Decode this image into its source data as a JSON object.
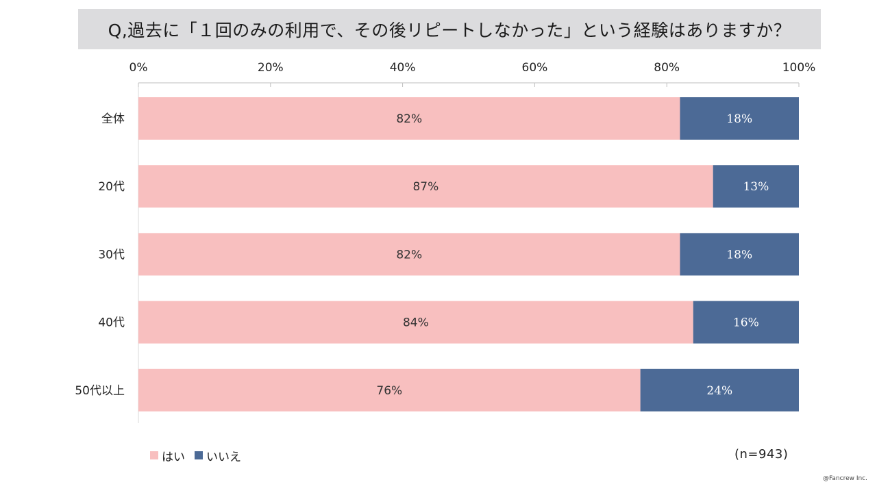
{
  "title": "Q,過去に「１回のみの利用で、その後リピートしなかった」という経験はありますか？",
  "chart_data": {
    "type": "bar",
    "orientation": "horizontal",
    "stacked": true,
    "percent": true,
    "categories": [
      "全体",
      "20代",
      "30代",
      "40代",
      "50代以上"
    ],
    "series": [
      {
        "name": "はい",
        "values": [
          82,
          87,
          82,
          84,
          76
        ],
        "labels": [
          "82%",
          "87%",
          "82%",
          "84%",
          "76%"
        ],
        "color": "#f8bfbf"
      },
      {
        "name": "いいえ",
        "values": [
          18,
          13,
          18,
          16,
          24
        ],
        "labels": [
          "18%",
          "13%",
          "18%",
          "16%",
          "24%"
        ],
        "color": "#4c6a96"
      }
    ],
    "xlim": [
      0,
      100
    ],
    "xticks": [
      0,
      20,
      40,
      60,
      80,
      100
    ],
    "xtick_labels": [
      "0%",
      "20%",
      "40%",
      "60%",
      "80%",
      "100%"
    ],
    "axis_position": "top",
    "grid": false,
    "legend_position": "bottom-left"
  },
  "legend": [
    {
      "label": "はい",
      "color": "#f8bfbf"
    },
    {
      "label": "いいえ",
      "color": "#4c6a96"
    }
  ],
  "sample_size": "(n=943)",
  "copyright": "@Fancrew Inc."
}
